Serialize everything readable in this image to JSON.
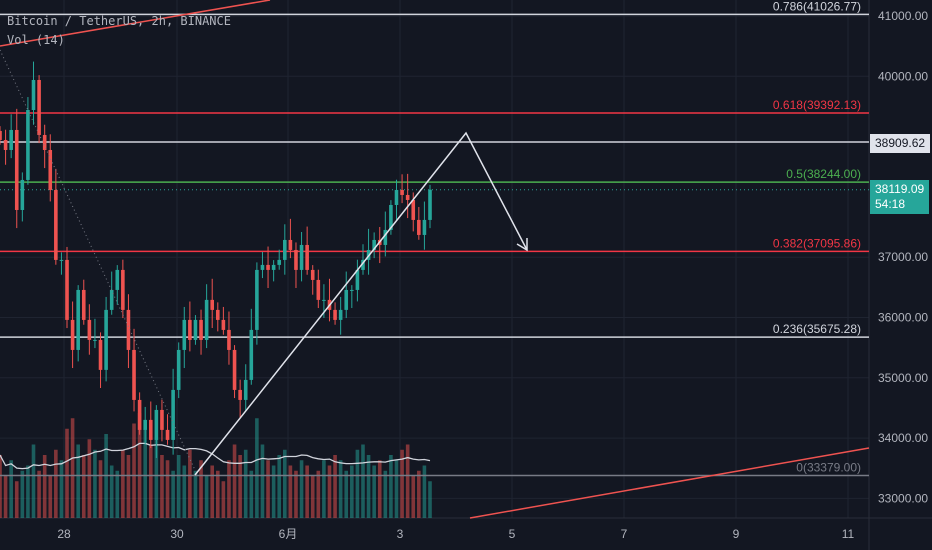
{
  "header": {
    "symbol_line": "Bitcoin / TetherUS, 2h, BINANCE",
    "volume_line": "Vol (14)"
  },
  "price_tags": {
    "horizontal_line": "38909.62",
    "last_price": "38119.09",
    "countdown": "54:18"
  },
  "colors": {
    "background": "#131722",
    "up": "#26a69a",
    "down": "#ef5350",
    "fib_red": "#f23645",
    "fib_green": "#4caf50",
    "fib_white": "#d1d4dc",
    "axis_text": "#b2b5be"
  },
  "chart_data": {
    "type": "candlestick",
    "yaxis": {
      "ticks": [
        "41000.00",
        "40000.00",
        "37000.00",
        "36000.00",
        "35000.00",
        "34000.00",
        "33000.00"
      ],
      "tick_values": [
        41000,
        40000,
        37000,
        36000,
        35000,
        34000,
        33000
      ],
      "ylim": [
        32600,
        41280
      ]
    },
    "xaxis": {
      "tick_labels": [
        "28",
        "30",
        "6月",
        "3",
        "5",
        "7",
        "9",
        "11"
      ]
    },
    "grid": true,
    "closes": [
      38944,
      38778,
      39110,
      37783,
      38281,
      39441,
      39939,
      39027,
      38778,
      38115,
      36955,
      36955,
      35960,
      35462,
      36457,
      35960,
      35628,
      35628,
      35131,
      36126,
      36457,
      36789,
      36126,
      35462,
      34633,
      34136,
      34302,
      33970,
      34467,
      34136,
      33970,
      34799,
      35462,
      35960,
      35628,
      35960,
      35628,
      36292,
      36126,
      35960,
      35794,
      35462,
      34799,
      34633,
      34965,
      35794,
      36789,
      36872,
      36789,
      36872,
      36955,
      37286,
      37120,
      36789,
      37203,
      36789,
      36623,
      36292,
      36292,
      36126,
      35960,
      36126,
      36457,
      36457,
      36789,
      36955,
      37120,
      37286,
      37203,
      37452,
      37866,
      38115,
      38032,
      37949,
      37618,
      37369,
      37618,
      38119
    ],
    "volume": [
      60,
      40,
      55,
      35,
      45,
      50,
      70,
      45,
      60,
      40,
      65,
      55,
      85,
      95,
      70,
      60,
      75,
      65,
      55,
      80,
      50,
      45,
      65,
      60,
      90,
      100,
      85,
      70,
      75,
      60,
      55,
      45,
      60,
      50,
      65,
      45,
      55,
      40,
      50,
      45,
      35,
      55,
      70,
      60,
      65,
      45,
      95,
      70,
      55,
      50,
      60,
      65,
      50,
      45,
      55,
      50,
      40,
      45,
      55,
      50,
      60,
      55,
      45,
      50,
      65,
      70,
      60,
      50,
      55,
      45,
      60,
      55,
      65,
      70,
      40,
      45,
      50,
      35
    ],
    "volume_ma_period": 14,
    "fib_levels": [
      {
        "label": "0.786(41026.77)",
        "value": 41026.77,
        "color": "#d1d4dc"
      },
      {
        "label": "0.618(39392.13)",
        "value": 39392.13,
        "color": "#f23645"
      },
      {
        "label": "0.5(38244.00)",
        "value": 38244.0,
        "color": "#4caf50"
      },
      {
        "label": "0.382(37095.86)",
        "value": 37095.86,
        "color": "#f23645"
      },
      {
        "label": "0.236(35675.28)",
        "value": 35675.28,
        "color": "#d1d4dc"
      },
      {
        "label": "0(33379.00)",
        "value": 33379.0,
        "color": "#787b86"
      }
    ],
    "horizontal_line": 38909.62,
    "last_price": 38119.09
  }
}
